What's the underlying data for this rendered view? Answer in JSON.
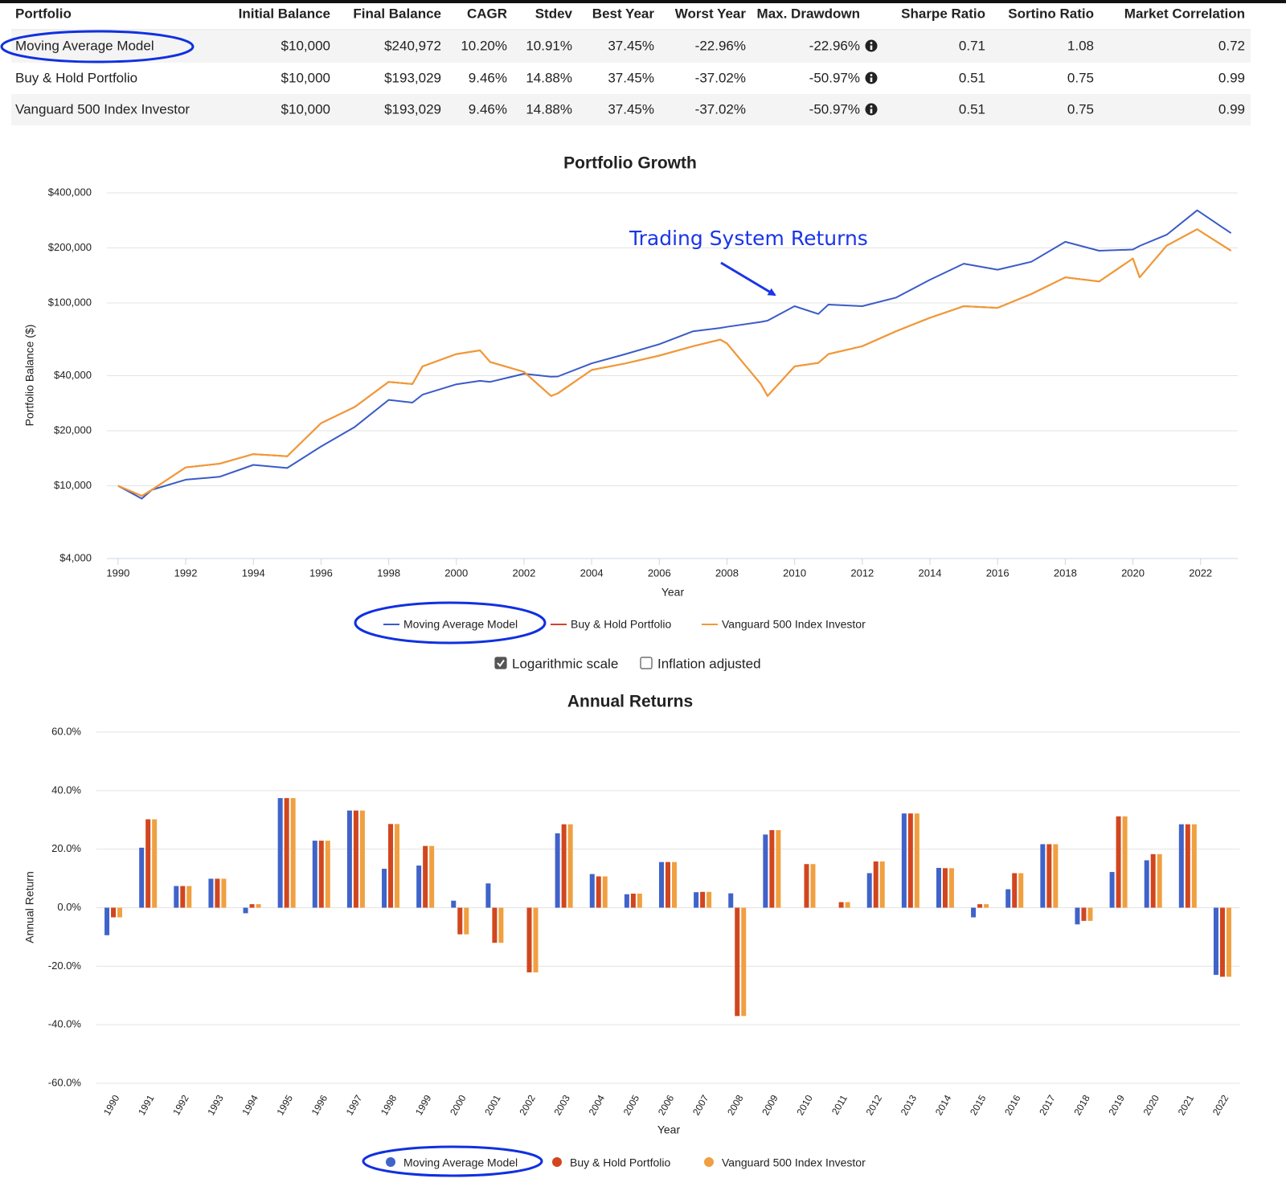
{
  "table": {
    "columns": [
      "Portfolio",
      "Initial Balance",
      "Final Balance",
      "CAGR",
      "Stdev",
      "Best Year",
      "Worst Year",
      "Max. Drawdown",
      "Sharpe Ratio",
      "Sortino Ratio",
      "Market Correlation"
    ],
    "rows": [
      [
        "Moving Average Model",
        "$10,000",
        "$240,972",
        "10.20%",
        "10.91%",
        "37.45%",
        "-22.96%",
        "-22.96%",
        "0.71",
        "1.08",
        "0.72"
      ],
      [
        "Buy & Hold Portfolio",
        "$10,000",
        "$193,029",
        "9.46%",
        "14.88%",
        "37.45%",
        "-37.02%",
        "-50.97%",
        "0.51",
        "0.75",
        "0.99"
      ],
      [
        "Vanguard 500 Index Investor",
        "$10,000",
        "$193,029",
        "9.46%",
        "14.88%",
        "37.45%",
        "-37.02%",
        "-50.97%",
        "0.51",
        "0.75",
        "0.99"
      ]
    ]
  },
  "controls": [
    {
      "label": "Logarithmic scale",
      "checked": true
    },
    {
      "label": "Inflation adjusted",
      "checked": false
    }
  ],
  "chart_data": [
    {
      "type": "line",
      "title": "Portfolio Growth",
      "x_label": "Year",
      "y_label": "Portfolio Balance ($)",
      "annotation": "Trading System Returns",
      "log_scale": true,
      "grid": true,
      "xlim": [
        1989.67,
        2023.1
      ],
      "xticks": [
        1990,
        1992,
        1994,
        1996,
        1998,
        2000,
        2002,
        2004,
        2006,
        2008,
        2010,
        2012,
        2014,
        2016,
        2018,
        2020,
        2022
      ],
      "ylim": [
        4000,
        400000
      ],
      "yticks": [
        {
          "value": 4000,
          "label": "$4,000"
        },
        {
          "value": 10000,
          "label": "$10,000"
        },
        {
          "value": 20000,
          "label": "$20,000"
        },
        {
          "value": 40000,
          "label": "$40,000"
        },
        {
          "value": 100000,
          "label": "$100,000"
        },
        {
          "value": 200000,
          "label": "$200,000"
        },
        {
          "value": 400000,
          "label": "$400,000"
        }
      ],
      "x": [
        1990,
        1990.7,
        1991,
        1992,
        1993,
        1994,
        1995,
        1996,
        1997,
        1998,
        1998.7,
        1999,
        2000,
        2000.7,
        2001,
        2002,
        2002.8,
        2003,
        2004,
        2005,
        2006,
        2007,
        2007.8,
        2008,
        2009,
        2009.2,
        2010,
        2010.7,
        2011,
        2012,
        2013,
        2014,
        2015,
        2016,
        2017,
        2018,
        2019,
        2020,
        2020.2,
        2021,
        2021.9,
        2022.9
      ],
      "series": [
        {
          "name": "Moving Average Model",
          "color": "#3a5bc7",
          "values": [
            10000,
            8500,
            9500,
            10800,
            11200,
            13000,
            12500,
            16400,
            21000,
            29500,
            28500,
            31500,
            35900,
            37500,
            37000,
            41000,
            39500,
            39600,
            46700,
            52500,
            59500,
            70000,
            73000,
            74000,
            78700,
            80000,
            96000,
            87000,
            98000,
            96000,
            107000,
            134000,
            164000,
            152000,
            168000,
            216000,
            193000,
            196000,
            205000,
            236000,
            321000,
            240972
          ]
        },
        {
          "name": "Buy & Hold Portfolio",
          "color": "#d4442a",
          "values": [
            10000,
            8800,
            9500,
            12600,
            13200,
            14900,
            14500,
            22000,
            27000,
            37000,
            36000,
            45000,
            52500,
            55000,
            47500,
            42000,
            31000,
            32000,
            43000,
            46700,
            51500,
            58000,
            63000,
            60000,
            36000,
            31000,
            45000,
            47000,
            52500,
            58000,
            70000,
            83000,
            96000,
            94000,
            112000,
            138000,
            131000,
            175000,
            138000,
            206000,
            253000,
            193029
          ]
        },
        {
          "name": "Vanguard 500 Index Investor",
          "color": "#f29a33",
          "values": [
            10000,
            8800,
            9500,
            12600,
            13200,
            14900,
            14500,
            22000,
            27000,
            37000,
            36000,
            45000,
            52500,
            55000,
            47500,
            42000,
            31000,
            32000,
            43000,
            46700,
            51500,
            58000,
            63000,
            60000,
            36000,
            31000,
            45000,
            47000,
            52500,
            58000,
            70000,
            83000,
            96000,
            94000,
            112000,
            138000,
            131000,
            175000,
            138000,
            206000,
            253000,
            193029
          ]
        }
      ]
    },
    {
      "type": "bar",
      "title": "Annual Returns",
      "x_label": "Year",
      "y_label": "Annual Return",
      "grid": true,
      "categories": [
        "1990",
        "1991",
        "1992",
        "1993",
        "1994",
        "1995",
        "1996",
        "1997",
        "1998",
        "1999",
        "2000",
        "2001",
        "2002",
        "2003",
        "2004",
        "2005",
        "2006",
        "2007",
        "2008",
        "2009",
        "2010",
        "2011",
        "2012",
        "2013",
        "2014",
        "2015",
        "2016",
        "2017",
        "2018",
        "2019",
        "2020",
        "2021",
        "2022"
      ],
      "ylim": [
        -60,
        60
      ],
      "yticks": [
        {
          "value": -60,
          "label": "-60.0%"
        },
        {
          "value": -40,
          "label": "-40.0%"
        },
        {
          "value": -20,
          "label": "-20.0%"
        },
        {
          "value": 0,
          "label": "0.0%"
        },
        {
          "value": 20,
          "label": "20.0%"
        },
        {
          "value": 40,
          "label": "40.0%"
        },
        {
          "value": 60,
          "label": "60.0%"
        }
      ],
      "series": [
        {
          "name": "Moving Average Model",
          "color": "#4063c9",
          "values": [
            -9.4,
            20.5,
            7.4,
            9.9,
            -1.9,
            37.45,
            22.9,
            33.2,
            13.3,
            14.4,
            2.4,
            8.3,
            0,
            25.4,
            11.5,
            4.6,
            15.6,
            5.3,
            4.9,
            25.0,
            0,
            0,
            11.8,
            32.2,
            13.6,
            -3.3,
            6.3,
            21.7,
            -5.7,
            12.2,
            16.2,
            28.5,
            -22.96
          ]
        },
        {
          "name": "Buy & Hold Portfolio",
          "color": "#d1461f",
          "values": [
            -3.3,
            30.2,
            7.4,
            9.9,
            1.2,
            37.45,
            22.9,
            33.2,
            28.6,
            21.1,
            -9.1,
            -12.0,
            -22.1,
            28.5,
            10.7,
            4.8,
            15.6,
            5.4,
            -37.02,
            26.5,
            14.9,
            1.9,
            15.8,
            32.2,
            13.5,
            1.2,
            11.8,
            21.7,
            -4.5,
            31.2,
            18.3,
            28.5,
            -23.6
          ]
        },
        {
          "name": "Vanguard 500 Index Investor",
          "color": "#f0a040",
          "values": [
            -3.3,
            30.2,
            7.4,
            9.9,
            1.2,
            37.45,
            22.9,
            33.2,
            28.6,
            21.1,
            -9.1,
            -12.0,
            -22.1,
            28.5,
            10.7,
            4.8,
            15.6,
            5.4,
            -37.02,
            26.5,
            14.9,
            1.9,
            15.8,
            32.2,
            13.5,
            1.2,
            11.8,
            21.7,
            -4.5,
            31.2,
            18.3,
            28.5,
            -23.6
          ]
        }
      ]
    }
  ]
}
